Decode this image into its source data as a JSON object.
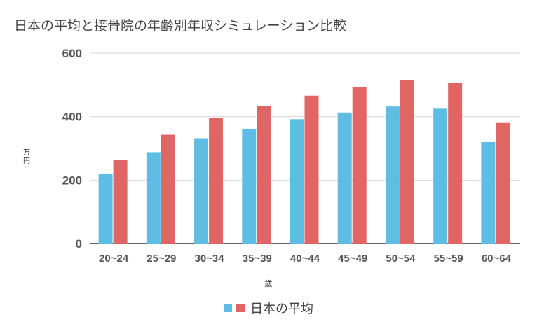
{
  "chart_data": {
    "type": "bar",
    "title": "日本の平均と接骨院の年齢別年収シミュレーション比較",
    "xlabel": "歳",
    "ylabel": "万円",
    "categories": [
      "20~24",
      "25~29",
      "30~34",
      "35~39",
      "40~44",
      "45~49",
      "50~54",
      "55~59",
      "60~64"
    ],
    "ylim": [
      0,
      600
    ],
    "yticks": [
      0,
      200,
      400,
      600
    ],
    "grid": true,
    "legend_position": "bottom",
    "series": [
      {
        "values": [
          220,
          288,
          332,
          362,
          392,
          413,
          432,
          425,
          320
        ],
        "color": "#5dbde5"
      },
      {
        "name": "日本の平均",
        "values": [
          263,
          343,
          396,
          433,
          466,
          493,
          515,
          506,
          380
        ],
        "color": "#e06666"
      }
    ]
  }
}
